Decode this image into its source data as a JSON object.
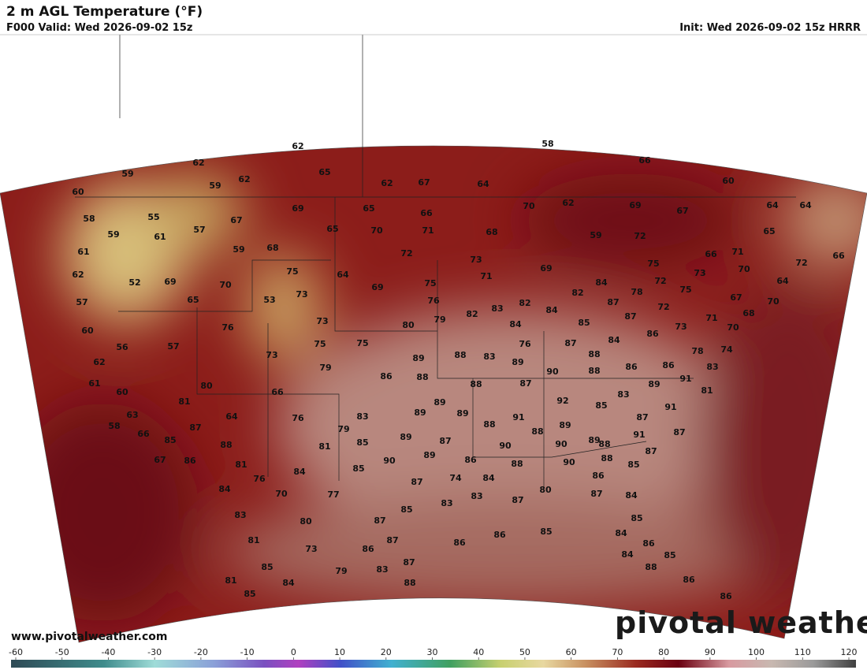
{
  "header": {
    "title": "2 m AGL Temperature (°F)",
    "valid": "F000 Valid: Wed 2026-09-02 15z",
    "init": "Init: Wed 2026-09-02 15z HRRR"
  },
  "map": {
    "temperature_labels": [
      62,
      58,
      59,
      62,
      65,
      66,
      59,
      62,
      62,
      67,
      64,
      60,
      60,
      69,
      65,
      66,
      70,
      62,
      69,
      67,
      64,
      64,
      58,
      55,
      67,
      57,
      65,
      70,
      71,
      68,
      59,
      72,
      65,
      59,
      61,
      59,
      68,
      72,
      73,
      71,
      66,
      72,
      66,
      61,
      75,
      64,
      71,
      69,
      75,
      73,
      70,
      62,
      52,
      69,
      70,
      69,
      75,
      84,
      64,
      57,
      65,
      53,
      73,
      76,
      82,
      72,
      75,
      67,
      70,
      78,
      87,
      82,
      83,
      84,
      72,
      60,
      76,
      73,
      80,
      79,
      82,
      84,
      85,
      87,
      73,
      71,
      68,
      70,
      56,
      57,
      75,
      75,
      87,
      84,
      86,
      76,
      78,
      74,
      62,
      73,
      79,
      89,
      88,
      83,
      89,
      88,
      86,
      83,
      61,
      80,
      86,
      88,
      90,
      88,
      86,
      60,
      66,
      88,
      87,
      89,
      91,
      81,
      81,
      92,
      83,
      63,
      64,
      76,
      83,
      89,
      89,
      89,
      91,
      85,
      87,
      91,
      58,
      87,
      79,
      88,
      88,
      89,
      89,
      91,
      87,
      66,
      85,
      89,
      87,
      85,
      88,
      81,
      90,
      90,
      88,
      87,
      67,
      86,
      90,
      89,
      86,
      88,
      90,
      88,
      85,
      81,
      84,
      85,
      86,
      76,
      74,
      84,
      87,
      84,
      70,
      77,
      83,
      83,
      87,
      84,
      87,
      80,
      83,
      80,
      87,
      85,
      85,
      87,
      86,
      86,
      85,
      84,
      86,
      81,
      73,
      86,
      84,
      85,
      85,
      79,
      83,
      87,
      88,
      84,
      88,
      81,
      85,
      86,
      86
    ]
  },
  "colorbar": {
    "ticks": [
      -60,
      -50,
      -40,
      -30,
      -20,
      -10,
      0,
      10,
      20,
      30,
      40,
      50,
      60,
      70,
      80,
      90,
      100,
      110,
      120
    ]
  },
  "footer": {
    "website": "www.pivotalweather.com",
    "logo": "pivotal weather"
  }
}
